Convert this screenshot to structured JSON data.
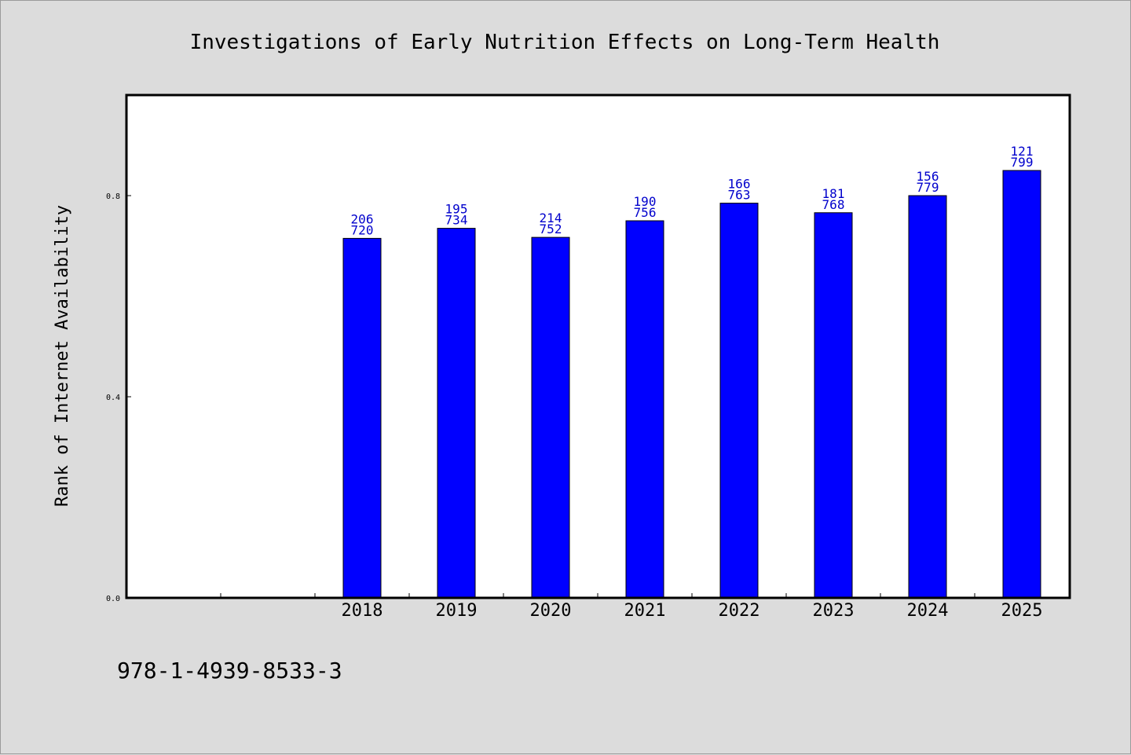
{
  "chart_data": {
    "type": "bar",
    "title": "Investigations of Early Nutrition Effects on Long-Term Health",
    "xlabel": "",
    "ylabel": "Rank of Internet Availability",
    "categories": [
      "2018",
      "2019",
      "2020",
      "2021",
      "2022",
      "2023",
      "2024",
      "2025"
    ],
    "values": [
      0.715,
      0.735,
      0.717,
      0.75,
      0.785,
      0.766,
      0.8,
      0.85
    ],
    "labels_top": [
      "206",
      "195",
      "214",
      "190",
      "166",
      "181",
      "156",
      "121"
    ],
    "labels_bottom": [
      "720",
      "734",
      "752",
      "756",
      "763",
      "768",
      "779",
      "799"
    ],
    "ylim": [
      0,
      1.0
    ],
    "yticks": [
      0.0,
      0.4,
      0.8
    ],
    "ytick_labels": [
      "0.0",
      "0.4",
      "0.8"
    ],
    "grid": false,
    "bar_color": "#0000ff",
    "label_color": "#0000cc"
  },
  "footnote": "978-1-4939-8533-3"
}
